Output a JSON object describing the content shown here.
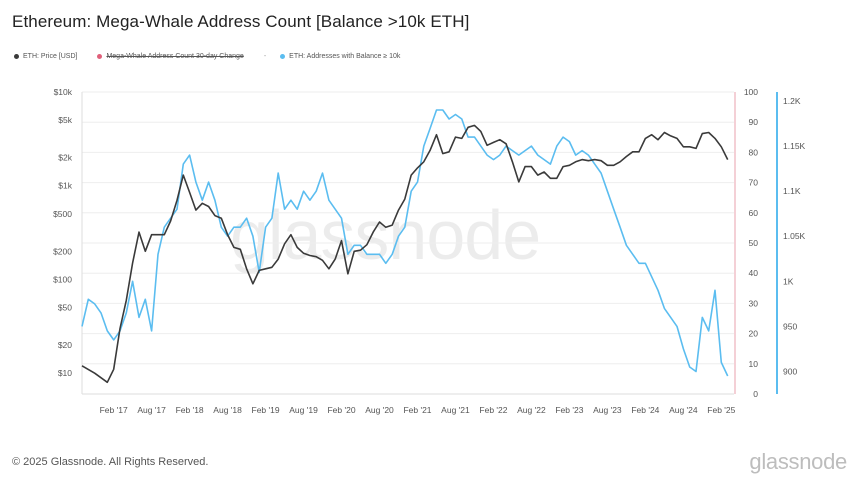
{
  "title": "Ethereum: Mega-Whale Address Count [Balance >10k ETH]",
  "legend": [
    {
      "label": "ETH: Price [USD]",
      "color": "#3a3a3a",
      "strike": false
    },
    {
      "label": "Mega-Whale Address Count 30-day Change",
      "color": "#e0607a",
      "strike": true
    },
    {
      "label": "ETH: Addresses with Balance ≥ 10k",
      "color": "#5bbdf0",
      "strike": false
    }
  ],
  "legend_dash": "-",
  "footer": "© 2025 Glassnode. All Rights Reserved.",
  "brand": "glassnode",
  "watermark": "glassnode",
  "colors": {
    "price": "#3a3a3a",
    "addresses": "#5bbdf0",
    "change_axis": "#e8a0ad",
    "grid": "#eeeeee"
  },
  "chart_data": {
    "type": "line",
    "x_ticks": [
      "Feb '17",
      "Aug '17",
      "Feb '18",
      "Aug '18",
      "Feb '19",
      "Aug '19",
      "Feb '20",
      "Aug '20",
      "Feb '21",
      "Aug '21",
      "Feb '22",
      "Aug '22",
      "Feb '23",
      "Aug '23",
      "Feb '24",
      "Aug '24",
      "Feb '25"
    ],
    "y_left": {
      "scale": "log",
      "ticks": [
        "$10k",
        "$5k",
        "$2k",
        "$1k",
        "$500",
        "$200",
        "$100",
        "$50",
        "$20",
        "$10"
      ],
      "tick_values": [
        10000,
        5000,
        2000,
        1000,
        500,
        200,
        100,
        50,
        20,
        10
      ],
      "range": [
        6,
        10000
      ]
    },
    "y_middle": {
      "ticks": [
        "100",
        "90",
        "80",
        "70",
        "60",
        "50",
        "40",
        "30",
        "20",
        "10",
        "0"
      ],
      "range": [
        0,
        100
      ]
    },
    "y_right": {
      "ticks": [
        "1.2K",
        "1.15K",
        "1.1K",
        "1.05K",
        "1K",
        "950",
        "900"
      ],
      "tick_values": [
        1200,
        1150,
        1100,
        1050,
        1000,
        950,
        900
      ],
      "range": [
        875,
        1210
      ]
    },
    "series": [
      {
        "name": "ETH: Price [USD]",
        "axis": "left",
        "points": [
          [
            "2016-09",
            12
          ],
          [
            "2016-11",
            10
          ],
          [
            "2017-01",
            8
          ],
          [
            "2017-02",
            11
          ],
          [
            "2017-03",
            30
          ],
          [
            "2017-04",
            60
          ],
          [
            "2017-05",
            150
          ],
          [
            "2017-06",
            320
          ],
          [
            "2017-07",
            200
          ],
          [
            "2017-08",
            300
          ],
          [
            "2017-09",
            300
          ],
          [
            "2017-10",
            300
          ],
          [
            "2017-11",
            420
          ],
          [
            "2017-12",
            700
          ],
          [
            "2018-01",
            1300
          ],
          [
            "2018-02",
            850
          ],
          [
            "2018-03",
            550
          ],
          [
            "2018-04",
            650
          ],
          [
            "2018-05",
            600
          ],
          [
            "2018-06",
            480
          ],
          [
            "2018-07",
            450
          ],
          [
            "2018-08",
            300
          ],
          [
            "2018-09",
            220
          ],
          [
            "2018-10",
            210
          ],
          [
            "2018-11",
            130
          ],
          [
            "2018-12",
            90
          ],
          [
            "2019-01",
            125
          ],
          [
            "2019-02",
            130
          ],
          [
            "2019-03",
            135
          ],
          [
            "2019-04",
            165
          ],
          [
            "2019-05",
            240
          ],
          [
            "2019-06",
            300
          ],
          [
            "2019-07",
            220
          ],
          [
            "2019-08",
            190
          ],
          [
            "2019-09",
            180
          ],
          [
            "2019-10",
            175
          ],
          [
            "2019-11",
            160
          ],
          [
            "2019-12",
            130
          ],
          [
            "2020-01",
            165
          ],
          [
            "2020-02",
            260
          ],
          [
            "2020-03",
            115
          ],
          [
            "2020-04",
            200
          ],
          [
            "2020-05",
            205
          ],
          [
            "2020-06",
            235
          ],
          [
            "2020-07",
            320
          ],
          [
            "2020-08",
            410
          ],
          [
            "2020-09",
            360
          ],
          [
            "2020-10",
            380
          ],
          [
            "2020-11",
            550
          ],
          [
            "2020-12",
            720
          ],
          [
            "2021-01",
            1300
          ],
          [
            "2021-02",
            1550
          ],
          [
            "2021-03",
            1800
          ],
          [
            "2021-04",
            2400
          ],
          [
            "2021-05",
            3500
          ],
          [
            "2021-06",
            2200
          ],
          [
            "2021-07",
            2300
          ],
          [
            "2021-08",
            3300
          ],
          [
            "2021-09",
            3200
          ],
          [
            "2021-10",
            4200
          ],
          [
            "2021-11",
            4400
          ],
          [
            "2021-12",
            3800
          ],
          [
            "2022-01",
            2700
          ],
          [
            "2022-02",
            2900
          ],
          [
            "2022-03",
            3100
          ],
          [
            "2022-04",
            2800
          ],
          [
            "2022-05",
            1800
          ],
          [
            "2022-06",
            1100
          ],
          [
            "2022-07",
            1600
          ],
          [
            "2022-08",
            1600
          ],
          [
            "2022-09",
            1300
          ],
          [
            "2022-10",
            1400
          ],
          [
            "2022-11",
            1200
          ],
          [
            "2022-12",
            1200
          ],
          [
            "2023-01",
            1600
          ],
          [
            "2023-02",
            1650
          ],
          [
            "2023-03",
            1800
          ],
          [
            "2023-04",
            1900
          ],
          [
            "2023-05",
            1850
          ],
          [
            "2023-06",
            1900
          ],
          [
            "2023-07",
            1850
          ],
          [
            "2023-08",
            1650
          ],
          [
            "2023-09",
            1650
          ],
          [
            "2023-10",
            1800
          ],
          [
            "2023-11",
            2050
          ],
          [
            "2023-12",
            2300
          ],
          [
            "2024-01",
            2300
          ],
          [
            "2024-02",
            3200
          ],
          [
            "2024-03",
            3500
          ],
          [
            "2024-04",
            3100
          ],
          [
            "2024-05",
            3700
          ],
          [
            "2024-06",
            3400
          ],
          [
            "2024-07",
            3200
          ],
          [
            "2024-08",
            2600
          ],
          [
            "2024-09",
            2600
          ],
          [
            "2024-10",
            2500
          ],
          [
            "2024-11",
            3600
          ],
          [
            "2024-12",
            3700
          ],
          [
            "2025-01",
            3200
          ],
          [
            "2025-02",
            2600
          ],
          [
            "2025-03",
            1900
          ]
        ]
      },
      {
        "name": "ETH: Addresses with Balance ≥ 10k",
        "axis": "right",
        "points": [
          [
            "2016-09",
            950
          ],
          [
            "2016-10",
            980
          ],
          [
            "2016-11",
            975
          ],
          [
            "2016-12",
            965
          ],
          [
            "2017-01",
            945
          ],
          [
            "2017-02",
            935
          ],
          [
            "2017-03",
            945
          ],
          [
            "2017-04",
            965
          ],
          [
            "2017-05",
            1000
          ],
          [
            "2017-06",
            960
          ],
          [
            "2017-07",
            980
          ],
          [
            "2017-08",
            945
          ],
          [
            "2017-09",
            1030
          ],
          [
            "2017-10",
            1060
          ],
          [
            "2017-11",
            1070
          ],
          [
            "2017-12",
            1080
          ],
          [
            "2018-01",
            1130
          ],
          [
            "2018-02",
            1140
          ],
          [
            "2018-03",
            1110
          ],
          [
            "2018-04",
            1090
          ],
          [
            "2018-05",
            1110
          ],
          [
            "2018-06",
            1090
          ],
          [
            "2018-07",
            1060
          ],
          [
            "2018-08",
            1050
          ],
          [
            "2018-09",
            1060
          ],
          [
            "2018-10",
            1060
          ],
          [
            "2018-11",
            1070
          ],
          [
            "2018-12",
            1050
          ],
          [
            "2019-01",
            1010
          ],
          [
            "2019-02",
            1060
          ],
          [
            "2019-03",
            1070
          ],
          [
            "2019-04",
            1120
          ],
          [
            "2019-05",
            1080
          ],
          [
            "2019-06",
            1090
          ],
          [
            "2019-07",
            1080
          ],
          [
            "2019-08",
            1100
          ],
          [
            "2019-09",
            1090
          ],
          [
            "2019-10",
            1100
          ],
          [
            "2019-11",
            1120
          ],
          [
            "2019-12",
            1090
          ],
          [
            "2020-01",
            1080
          ],
          [
            "2020-02",
            1070
          ],
          [
            "2020-03",
            1030
          ],
          [
            "2020-04",
            1040
          ],
          [
            "2020-05",
            1040
          ],
          [
            "2020-06",
            1030
          ],
          [
            "2020-07",
            1030
          ],
          [
            "2020-08",
            1030
          ],
          [
            "2020-09",
            1020
          ],
          [
            "2020-10",
            1030
          ],
          [
            "2020-11",
            1050
          ],
          [
            "2020-12",
            1060
          ],
          [
            "2021-01",
            1100
          ],
          [
            "2021-02",
            1110
          ],
          [
            "2021-03",
            1150
          ],
          [
            "2021-04",
            1170
          ],
          [
            "2021-05",
            1190
          ],
          [
            "2021-06",
            1190
          ],
          [
            "2021-07",
            1180
          ],
          [
            "2021-08",
            1185
          ],
          [
            "2021-09",
            1180
          ],
          [
            "2021-10",
            1160
          ],
          [
            "2021-11",
            1160
          ],
          [
            "2021-12",
            1150
          ],
          [
            "2022-01",
            1140
          ],
          [
            "2022-02",
            1135
          ],
          [
            "2022-03",
            1140
          ],
          [
            "2022-04",
            1150
          ],
          [
            "2022-05",
            1145
          ],
          [
            "2022-06",
            1140
          ],
          [
            "2022-07",
            1145
          ],
          [
            "2022-08",
            1150
          ],
          [
            "2022-09",
            1140
          ],
          [
            "2022-10",
            1135
          ],
          [
            "2022-11",
            1130
          ],
          [
            "2022-12",
            1150
          ],
          [
            "2023-01",
            1160
          ],
          [
            "2023-02",
            1155
          ],
          [
            "2023-03",
            1140
          ],
          [
            "2023-04",
            1145
          ],
          [
            "2023-05",
            1140
          ],
          [
            "2023-06",
            1130
          ],
          [
            "2023-07",
            1120
          ],
          [
            "2023-08",
            1100
          ],
          [
            "2023-09",
            1080
          ],
          [
            "2023-10",
            1060
          ],
          [
            "2023-11",
            1040
          ],
          [
            "2023-12",
            1030
          ],
          [
            "2024-01",
            1020
          ],
          [
            "2024-02",
            1020
          ],
          [
            "2024-03",
            1005
          ],
          [
            "2024-04",
            990
          ],
          [
            "2024-05",
            970
          ],
          [
            "2024-06",
            960
          ],
          [
            "2024-07",
            950
          ],
          [
            "2024-08",
            925
          ],
          [
            "2024-09",
            905
          ],
          [
            "2024-10",
            900
          ],
          [
            "2024-11",
            960
          ],
          [
            "2024-12",
            945
          ],
          [
            "2025-01",
            990
          ],
          [
            "2025-02",
            910
          ],
          [
            "2025-03",
            895
          ]
        ]
      }
    ],
    "xlabel": "",
    "ylabel": "",
    "grid": true,
    "legend_position": "top-left"
  }
}
